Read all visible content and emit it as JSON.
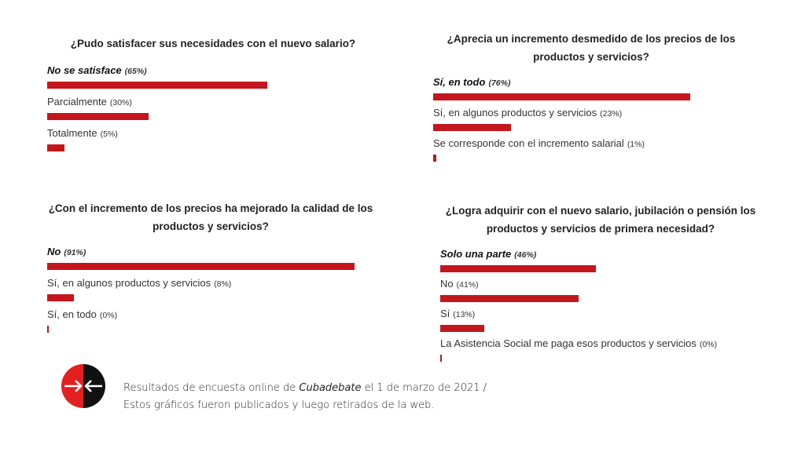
{
  "chart_data": [
    {
      "type": "bar",
      "title": "¿Pudo satisfacer sus necesidades con el nuevo salario?",
      "categories": [
        "No se satisface",
        "Parcialmente",
        "Totalmente"
      ],
      "values": [
        65,
        30,
        5
      ],
      "value_labels": [
        "(65%)",
        "(30%)",
        "(5%)"
      ],
      "color": "#c4161c"
    },
    {
      "type": "bar",
      "title": "¿Aprecia un incremento desmedido de los precios de los productos y servicios?",
      "categories": [
        "Sí, en todo",
        "Sí, en algunos productos y servicios",
        "Se corresponde con el incremento salarial"
      ],
      "values": [
        76,
        23,
        1
      ],
      "value_labels": [
        "(76%)",
        "(23%)",
        "(1%)"
      ],
      "color": "#c4161c"
    },
    {
      "type": "bar",
      "title": "¿Con el incremento de los precios ha mejorado la calidad de los productos y servicios?",
      "categories": [
        "No",
        "Sí, en algunos productos y servicios",
        "Sí, en todo"
      ],
      "values": [
        91,
        8,
        0
      ],
      "value_labels": [
        "(91%)",
        "(8%)",
        "(0%)"
      ],
      "color": "#c4161c"
    },
    {
      "type": "bar",
      "title": "¿Logra adquirir con el nuevo salario, jubilación o pensión los productos y servicios de primera necesidad?",
      "categories": [
        "Solo una parte",
        "No",
        "Sí",
        "La Asistencia Social me paga esos productos y servicios"
      ],
      "values": [
        46,
        41,
        13,
        0
      ],
      "value_labels": [
        "(46%)",
        "(41%)",
        "(13%)",
        "(0%)"
      ],
      "color": "#c4161c"
    }
  ],
  "footer": {
    "line1": [
      "Resultados de encuesta online de ",
      "Cubadebate",
      " el 1 de marzo de 2021 /"
    ],
    "line2": "Estos gráficos fueron publicados y luego retirados de la web."
  }
}
